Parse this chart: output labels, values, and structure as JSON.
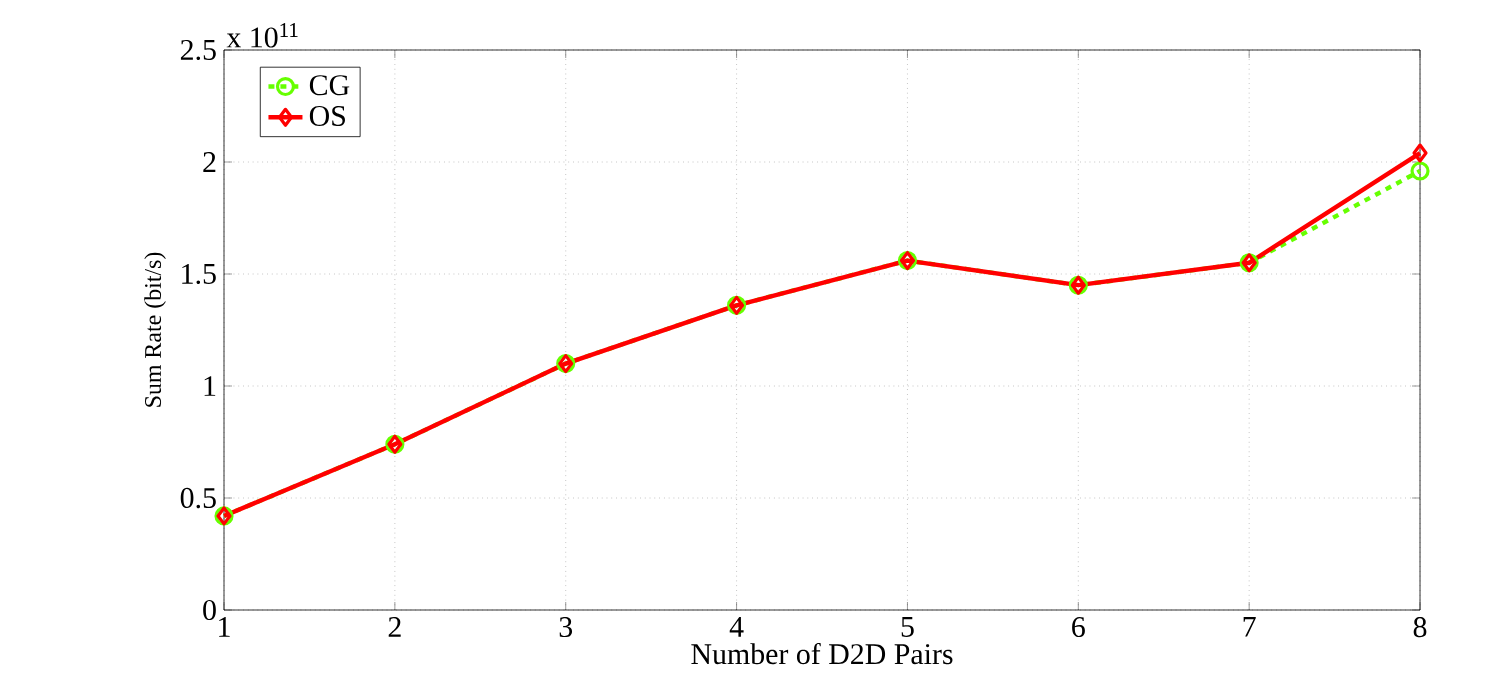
{
  "chart_data": {
    "type": "line",
    "xlabel": "Number of D2D Pairs",
    "ylabel": "Sum Rate (bit/s)",
    "annotations": [
      "x 10$^{11}$"
    ],
    "x": [
      1,
      2,
      3,
      4,
      5,
      6,
      7,
      8
    ],
    "series": [
      {
        "name": "CG",
        "color": "#66ff00",
        "marker": "circle",
        "line_style": "dashed",
        "values": [
          0.42,
          0.74,
          1.1,
          1.36,
          1.56,
          1.45,
          1.55,
          1.96
        ]
      },
      {
        "name": "OS",
        "color": "#ff0000",
        "marker": "diamond",
        "line_style": "solid",
        "values": [
          0.42,
          0.74,
          1.1,
          1.36,
          1.56,
          1.45,
          1.55,
          2.04
        ]
      }
    ],
    "xlim": [
      1,
      8
    ],
    "xticks": [
      1,
      2,
      3,
      4,
      5,
      6,
      7,
      8
    ],
    "ylim": [
      0,
      2.5
    ],
    "yticks": [
      0,
      0.5,
      1,
      1.5,
      2,
      2.5
    ],
    "grid": true,
    "legend": "top left"
  }
}
